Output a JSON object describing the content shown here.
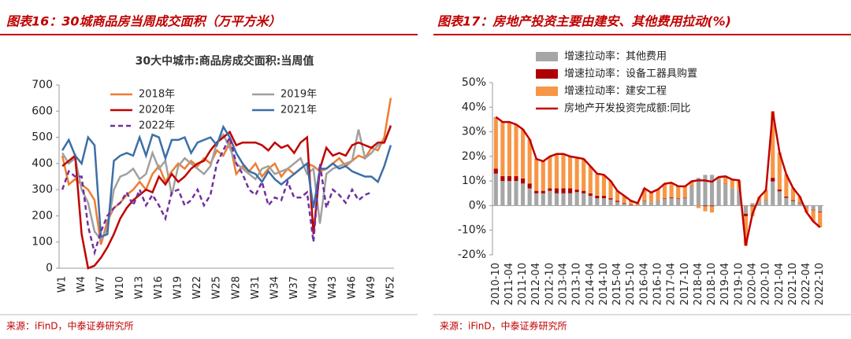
{
  "chart_data": [
    {
      "type": "line",
      "caption": "图表16：30城商品房当周成交面积（万平方米）",
      "title": "30大中城市:商品房成交面积:当周值",
      "source": "来源：iFinD，中泰证券研究所",
      "categories": [
        "W1",
        null,
        null,
        "W4",
        null,
        null,
        "W7",
        null,
        null,
        "W10",
        null,
        null,
        "W13",
        null,
        null,
        "W16",
        null,
        null,
        "W19",
        null,
        null,
        "W22",
        null,
        null,
        "W25",
        null,
        null,
        "W28",
        null,
        null,
        "W31",
        null,
        null,
        "W34",
        null,
        null,
        "W37",
        null,
        null,
        "W40",
        null,
        null,
        "W43",
        null,
        null,
        "W46",
        null,
        null,
        "W49",
        null,
        null,
        "W52"
      ],
      "ylim": [
        0,
        700
      ],
      "yticks": [
        0,
        100,
        200,
        300,
        400,
        500,
        600,
        700
      ],
      "grid": false,
      "series": [
        {
          "name": "2018年",
          "color": "#ed7d31",
          "values": [
            430,
            320,
            340,
            320,
            300,
            260,
            90,
            180,
            230,
            250,
            280,
            300,
            330,
            300,
            360,
            390,
            330,
            370,
            400,
            380,
            410,
            390,
            420,
            400,
            450,
            430,
            480,
            360,
            390,
            370,
            400,
            350,
            380,
            400,
            350,
            380,
            360,
            380,
            400,
            390,
            370,
            380,
            400,
            420,
            390,
            410,
            430,
            420,
            460,
            450,
            500,
            650
          ]
        },
        {
          "name": "2019年",
          "color": "#a0a0a0",
          "values": [
            440,
            400,
            420,
            300,
            250,
            140,
            110,
            150,
            300,
            350,
            360,
            380,
            340,
            360,
            440,
            380,
            410,
            280,
            390,
            420,
            400,
            380,
            360,
            390,
            480,
            510,
            460,
            400,
            380,
            360,
            340,
            380,
            390,
            360,
            370,
            380,
            400,
            420,
            360,
            380,
            170,
            360,
            380,
            390,
            400,
            410,
            530,
            420,
            440,
            470,
            480,
            540
          ]
        },
        {
          "name": "2020年",
          "color": "#c00000",
          "values": [
            390,
            410,
            430,
            130,
            0,
            10,
            40,
            80,
            130,
            190,
            230,
            260,
            280,
            300,
            290,
            350,
            320,
            360,
            330,
            350,
            380,
            400,
            410,
            450,
            480,
            500,
            520,
            470,
            480,
            480,
            480,
            470,
            450,
            480,
            460,
            470,
            440,
            480,
            500,
            130,
            380,
            460,
            430,
            440,
            430,
            470,
            480,
            470,
            460,
            480,
            480,
            545
          ]
        },
        {
          "name": "2021年",
          "color": "#3d6ea8",
          "values": [
            450,
            490,
            430,
            400,
            500,
            470,
            120,
            130,
            410,
            430,
            440,
            430,
            500,
            430,
            510,
            500,
            420,
            490,
            490,
            500,
            440,
            480,
            490,
            500,
            470,
            540,
            500,
            440,
            400,
            370,
            360,
            330,
            370,
            340,
            320,
            340,
            360,
            380,
            400,
            230,
            380,
            380,
            400,
            380,
            390,
            370,
            360,
            350,
            350,
            330,
            390,
            470
          ]
        },
        {
          "name": "2022年",
          "color": "#7030a0",
          "dashed": true,
          "values": [
            300,
            370,
            350,
            350,
            160,
            60,
            140,
            200,
            230,
            250,
            290,
            240,
            300,
            240,
            280,
            240,
            190,
            290,
            300,
            240,
            260,
            300,
            240,
            280,
            400,
            450,
            500,
            400,
            360,
            300,
            280,
            330,
            240,
            270,
            260,
            330,
            270,
            270,
            290,
            100,
            400,
            230,
            300,
            280,
            250,
            300,
            260,
            280,
            290,
            null,
            null,
            null
          ]
        }
      ]
    },
    {
      "type": "bar",
      "stacked": true,
      "caption": "图表17：房地产投资主要由建安、其他费用拉动(%)",
      "source": "来源：iFinD，中泰证券研究所",
      "categories": [
        "2010-10",
        null,
        "2011-04",
        null,
        "2011-10",
        null,
        "2012-04",
        null,
        "2012-10",
        null,
        "2013-04",
        null,
        "2013-10",
        null,
        "2014-04",
        null,
        "2014-10",
        null,
        "2015-04",
        null,
        "2015-10",
        null,
        "2016-04",
        null,
        "2016-10",
        null,
        "2017-04",
        null,
        "2017-10",
        null,
        "2018-04",
        null,
        "2018-10",
        null,
        "2019-04",
        null,
        "2019-10",
        null,
        "2020-04",
        null,
        "2020-10",
        null,
        "2021-04",
        null,
        "2021-10",
        null,
        "2022-04",
        null,
        "2022-10"
      ],
      "ylim": [
        -20,
        50
      ],
      "yticks": [
        {
          "value": -20,
          "label": "-20%"
        },
        {
          "value": -10,
          "label": "-10%"
        },
        {
          "value": 0,
          "label": "0%"
        },
        {
          "value": 10,
          "label": "10%"
        },
        {
          "value": 20,
          "label": "20%"
        },
        {
          "value": 30,
          "label": "30%"
        },
        {
          "value": 40,
          "label": "40%"
        },
        {
          "value": 50,
          "label": "50%"
        }
      ],
      "grid": false,
      "series": [
        {
          "name": "增速拉动率：其他费用",
          "color": "#a6a6a6",
          "values": [
            13,
            10,
            10,
            10,
            9,
            7,
            5,
            5,
            6,
            5,
            5,
            5,
            5.5,
            5,
            4,
            3,
            3,
            2.5,
            1.5,
            0.7,
            0.3,
            0.2,
            1.8,
            1.3,
            2,
            2.7,
            3,
            2.7,
            3.1,
            7.8,
            11.3,
            12.5,
            12.5,
            10.6,
            8.8,
            7.1,
            6.3,
            -3.3,
            1,
            1.4,
            2.2,
            9.8,
            5.8,
            3.2,
            1.9,
            1,
            -0.6,
            -1.7,
            -2.5
          ]
        },
        {
          "name": "增速拉动率：设备工器具购置",
          "color": "#b00000",
          "values": [
            2,
            2,
            2,
            2,
            2,
            2,
            1,
            1,
            1,
            2,
            2,
            2,
            1,
            1,
            1,
            1,
            1,
            0.5,
            0.5,
            0.3,
            0.2,
            0,
            0.2,
            0,
            0.1,
            0.2,
            0.3,
            0.2,
            0.2,
            0.1,
            0,
            -0.3,
            -0.3,
            0,
            0.1,
            0,
            0,
            -1,
            -0.3,
            0,
            0.1,
            1.5,
            0.8,
            0.5,
            0.3,
            0.2,
            -0.1,
            -0.2,
            -0.3
          ]
        },
        {
          "name": "增速拉动率：建安工程",
          "color": "#f79646",
          "values": [
            21,
            22,
            22,
            21,
            20,
            18,
            13,
            12,
            13,
            14,
            14,
            13,
            13,
            13,
            11,
            9,
            8.5,
            7,
            4,
            3,
            1.5,
            0.8,
            5,
            4,
            4.5,
            6,
            6,
            5,
            4.5,
            2,
            -1,
            -2,
            -2.5,
            1,
            3,
            3.5,
            4,
            -12,
            -4,
            2,
            4,
            27,
            15,
            9,
            5,
            2.5,
            -2,
            -4.5,
            -6
          ]
        },
        {
          "name": "房地产开发投资完成额:同比",
          "color": "#c00000",
          "type": "line",
          "values": [
            36,
            34,
            34,
            33,
            31,
            27,
            19,
            18,
            20,
            21,
            21,
            20,
            19.5,
            19,
            16,
            13,
            12.5,
            10,
            6,
            4,
            2,
            1,
            7,
            5.3,
            6.6,
            8.9,
            9.3,
            7.9,
            7.8,
            9.9,
            10.3,
            10.2,
            9.7,
            11.6,
            11.9,
            10.6,
            10.3,
            -16.3,
            -3.3,
            3.4,
            6.3,
            38.3,
            21.6,
            12.7,
            7.2,
            3.7,
            -2.7,
            -6.4,
            -8.8
          ]
        }
      ]
    }
  ]
}
